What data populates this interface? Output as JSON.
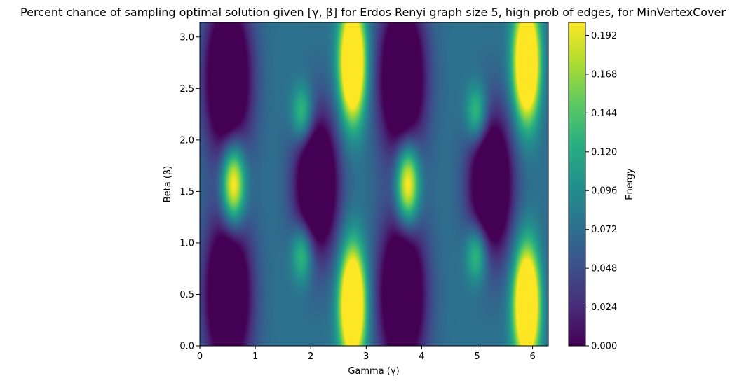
{
  "chart_data": {
    "type": "heatmap",
    "title": "Percent chance of sampling optimal solution given [γ, β] for Erdos Renyi graph size 5, high prob of edges, for MinVertexCover",
    "xlabel": "Gamma (γ)",
    "ylabel": "Beta (β)",
    "colorbar_label": "Energy",
    "colormap": "viridis",
    "xlim": [
      0,
      6.283
    ],
    "ylim": [
      0,
      3.1416
    ],
    "clim": [
      0,
      0.2
    ],
    "x_ticks": [
      "0",
      "1",
      "2",
      "3",
      "4",
      "5",
      "6"
    ],
    "y_ticks": [
      "0.0",
      "0.5",
      "1.0",
      "1.5",
      "2.0",
      "2.5",
      "3.0"
    ],
    "colorbar_ticks": [
      "0.000",
      "0.024",
      "0.048",
      "0.072",
      "0.096",
      "0.120",
      "0.144",
      "0.168",
      "0.192"
    ],
    "grid": false,
    "x_periodicity": 3.1416,
    "features": [
      {
        "kind": "peak",
        "gamma": 2.75,
        "beta": 2.75,
        "value": 0.2
      },
      {
        "kind": "peak",
        "gamma": 2.75,
        "beta": 0.4,
        "value": 0.2
      },
      {
        "kind": "peak",
        "gamma": 5.9,
        "beta": 2.75,
        "value": 0.2
      },
      {
        "kind": "peak",
        "gamma": 5.9,
        "beta": 0.4,
        "value": 0.2
      },
      {
        "kind": "peak",
        "gamma": 0.6,
        "beta": 1.57,
        "value": 0.16
      },
      {
        "kind": "peak",
        "gamma": 3.75,
        "beta": 1.57,
        "value": 0.16
      },
      {
        "kind": "peak",
        "gamma": 1.85,
        "beta": 2.25,
        "value": 0.12
      },
      {
        "kind": "peak",
        "gamma": 1.85,
        "beta": 0.9,
        "value": 0.12
      },
      {
        "kind": "peak",
        "gamma": 5.0,
        "beta": 2.25,
        "value": 0.12
      },
      {
        "kind": "peak",
        "gamma": 5.0,
        "beta": 0.9,
        "value": 0.12
      },
      {
        "kind": "trough",
        "gamma": 2.1,
        "beta": 1.57,
        "value": 0.0
      },
      {
        "kind": "trough",
        "gamma": 5.25,
        "beta": 1.57,
        "value": 0.0
      },
      {
        "kind": "trough",
        "gamma": 0.5,
        "beta": 2.6,
        "value": 0.0
      },
      {
        "kind": "trough",
        "gamma": 0.5,
        "beta": 0.5,
        "value": 0.0
      },
      {
        "kind": "trough",
        "gamma": 3.65,
        "beta": 2.6,
        "value": 0.0
      },
      {
        "kind": "trough",
        "gamma": 3.65,
        "beta": 0.5,
        "value": 0.0
      }
    ]
  }
}
